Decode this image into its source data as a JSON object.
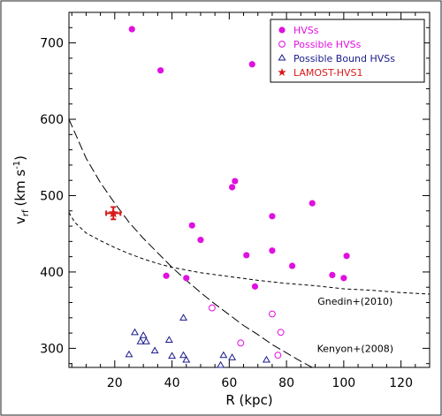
{
  "chart_data": {
    "type": "scatter",
    "title": "",
    "xlabel": "R (kpc)",
    "ylabel_main": "v",
    "ylabel_sub": "rf",
    "ylabel_units": "(km s",
    "ylabel_sup": "-1",
    "ylabel_close": ")",
    "xlim": [
      4,
      130
    ],
    "ylim": [
      275,
      740
    ],
    "x_ticks": [
      20,
      40,
      60,
      80,
      100,
      120
    ],
    "y_ticks": [
      300,
      400,
      500,
      600,
      700
    ],
    "x_tick_labels": [
      "20",
      "40",
      "60",
      "80",
      "100",
      "120"
    ],
    "y_tick_labels": [
      "300",
      "400",
      "500",
      "600",
      "700"
    ],
    "grid": false,
    "legend_position": "top-right",
    "series": [
      {
        "name": "HVSs",
        "marker": "filled-circle",
        "color": "#e010e0",
        "x": [
          26,
          36,
          38,
          45,
          47,
          50,
          61,
          62,
          66,
          68,
          69,
          75,
          75,
          82,
          89,
          96,
          100,
          101
        ],
        "y": [
          718,
          664,
          395,
          392,
          461,
          442,
          511,
          519,
          422,
          672,
          381,
          473,
          428,
          408,
          490,
          396,
          392,
          421
        ]
      },
      {
        "name": "Possible HVSs",
        "marker": "open-circle",
        "color": "#e010e0",
        "x": [
          54,
          64,
          75,
          77,
          78
        ],
        "y": [
          353,
          307,
          345,
          291,
          321
        ]
      },
      {
        "name": "Possible Bound HVSs",
        "marker": "open-triangle",
        "color": "#1a1a8c",
        "x": [
          25,
          27,
          29,
          30,
          31,
          34,
          39,
          40,
          44,
          44,
          45,
          57,
          58,
          61,
          73
        ],
        "y": [
          292,
          321,
          309,
          317,
          309,
          297,
          311,
          290,
          340,
          291,
          285,
          278,
          291,
          288,
          285
        ]
      },
      {
        "name": "LAMOST-HVS1",
        "marker": "star",
        "color": "#d81b1b",
        "x": [
          19.5
        ],
        "y": [
          477
        ],
        "x_err": 2.5,
        "y_err": 8
      }
    ],
    "curves": [
      {
        "name": "Kenyon+(2008)",
        "style": "long-dash",
        "x": [
          4,
          10,
          15,
          20,
          25,
          30,
          35,
          40,
          45,
          50,
          55,
          60,
          65,
          70,
          75,
          80,
          85,
          90
        ],
        "y": [
          600,
          549,
          517,
          490,
          465,
          444,
          425,
          406,
          389,
          373,
          358,
          344,
          330,
          318,
          305,
          294,
          283,
          273
        ]
      },
      {
        "name": "Gnedin+(2010)",
        "style": "short-dash",
        "x": [
          4,
          6,
          10,
          15,
          20,
          25,
          30,
          35,
          40,
          50,
          60,
          70,
          80,
          90,
          100,
          110,
          120,
          130
        ],
        "y": [
          478,
          465,
          451,
          441,
          432,
          424,
          417,
          411,
          406,
          399,
          394,
          389,
          385,
          382,
          378,
          376,
          373,
          371
        ]
      }
    ],
    "annotations": [
      {
        "text": "Gnedin+(2010)",
        "x": 104,
        "y": 357
      },
      {
        "text": "Kenyon+(2008)",
        "x": 104,
        "y": 295
      }
    ]
  }
}
